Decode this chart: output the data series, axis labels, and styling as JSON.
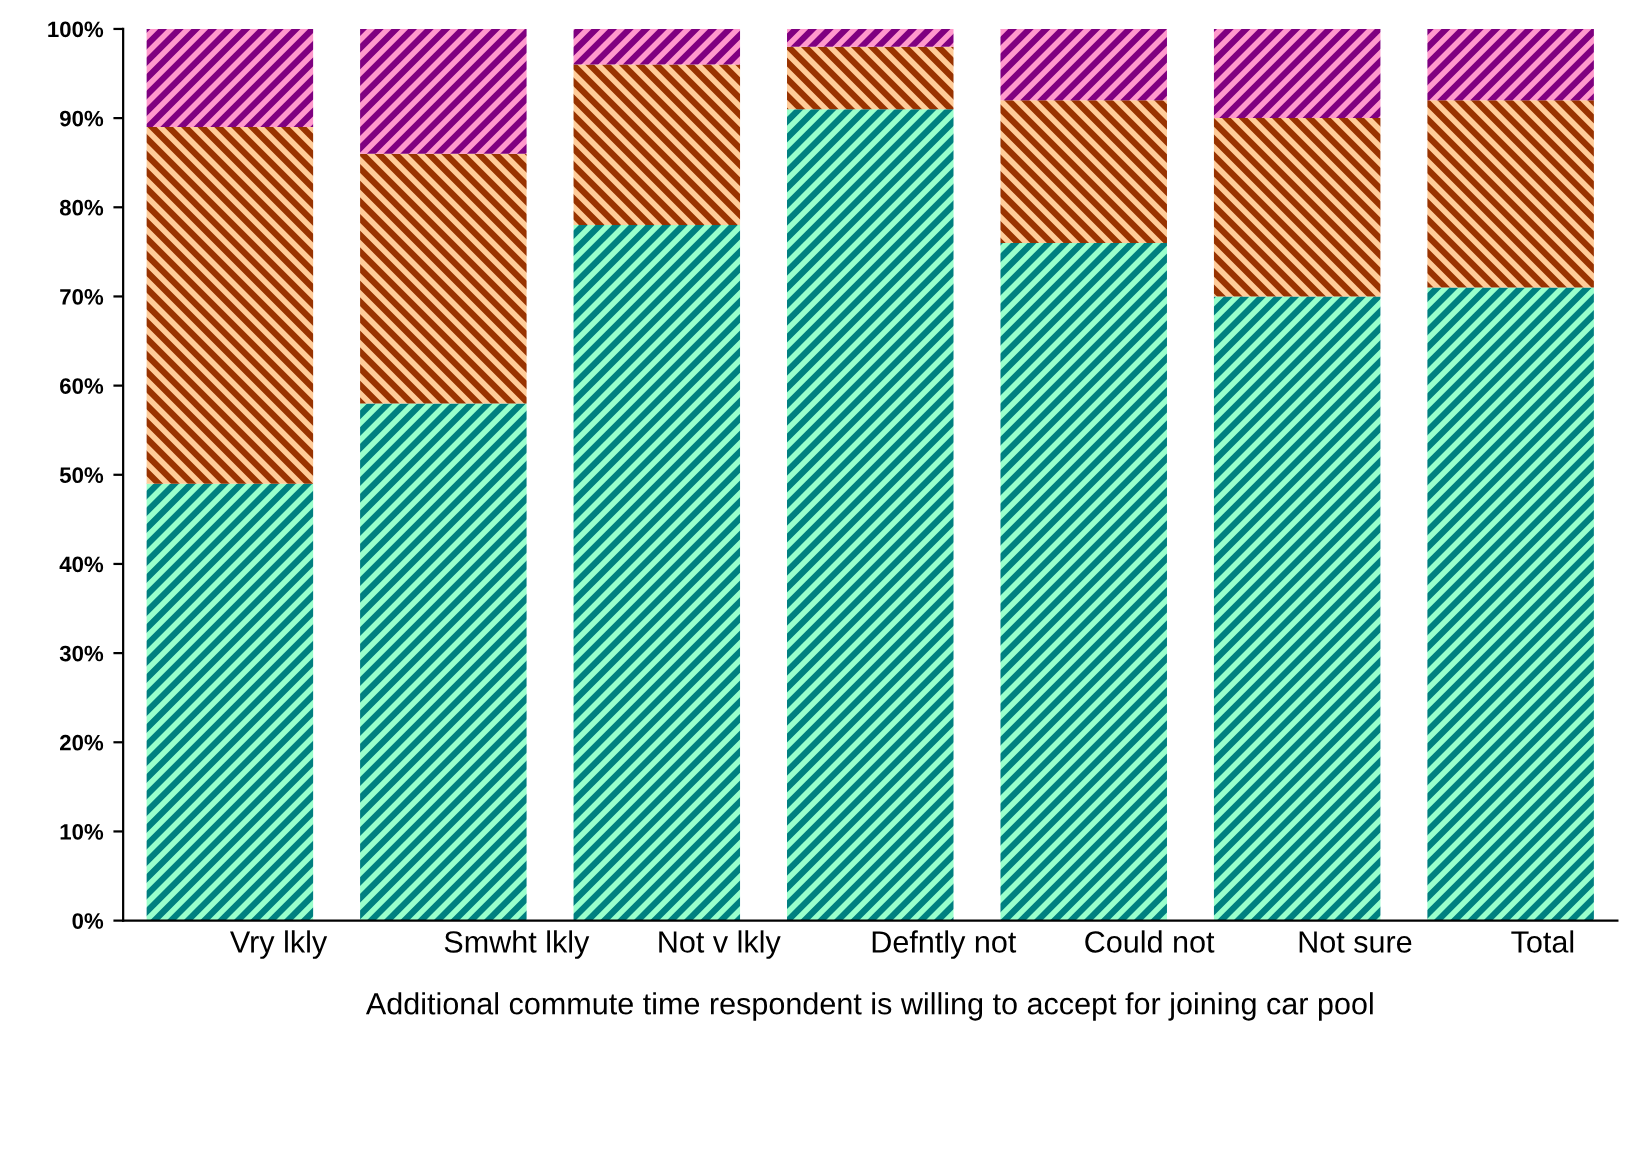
{
  "chart_data": {
    "type": "bar",
    "stacked": true,
    "xlabel": "Additional commute time respondent is willing to accept for joining car pool",
    "categories": [
      "Vry lkly",
      "Smwht lkly",
      "Not v lkly",
      "Defntly not",
      "Could not",
      "Not sure",
      "Total"
    ],
    "series": [
      {
        "color": "#008080",
        "values": [
          49,
          58,
          78,
          91,
          76,
          70,
          71
        ]
      },
      {
        "color": "#993300",
        "values": [
          40,
          28,
          18,
          7,
          16,
          20,
          21
        ]
      },
      {
        "color": "#800080",
        "values": [
          11,
          14,
          4,
          2,
          8,
          10,
          8
        ]
      }
    ],
    "ylim": [
      0,
      100
    ],
    "yticks": [
      {
        "value": 0,
        "label": "0%"
      },
      {
        "value": 10,
        "label": "10%"
      },
      {
        "value": 20,
        "label": "20%"
      },
      {
        "value": 30,
        "label": "30%"
      },
      {
        "value": 40,
        "label": "40%"
      },
      {
        "value": 50,
        "label": "50%"
      },
      {
        "value": 60,
        "label": "60%"
      },
      {
        "value": 70,
        "label": "70%"
      },
      {
        "value": 80,
        "label": "80%"
      },
      {
        "value": 90,
        "label": "90%"
      },
      {
        "value": 100,
        "label": "100%"
      }
    ],
    "grid": false,
    "legend": false
  }
}
